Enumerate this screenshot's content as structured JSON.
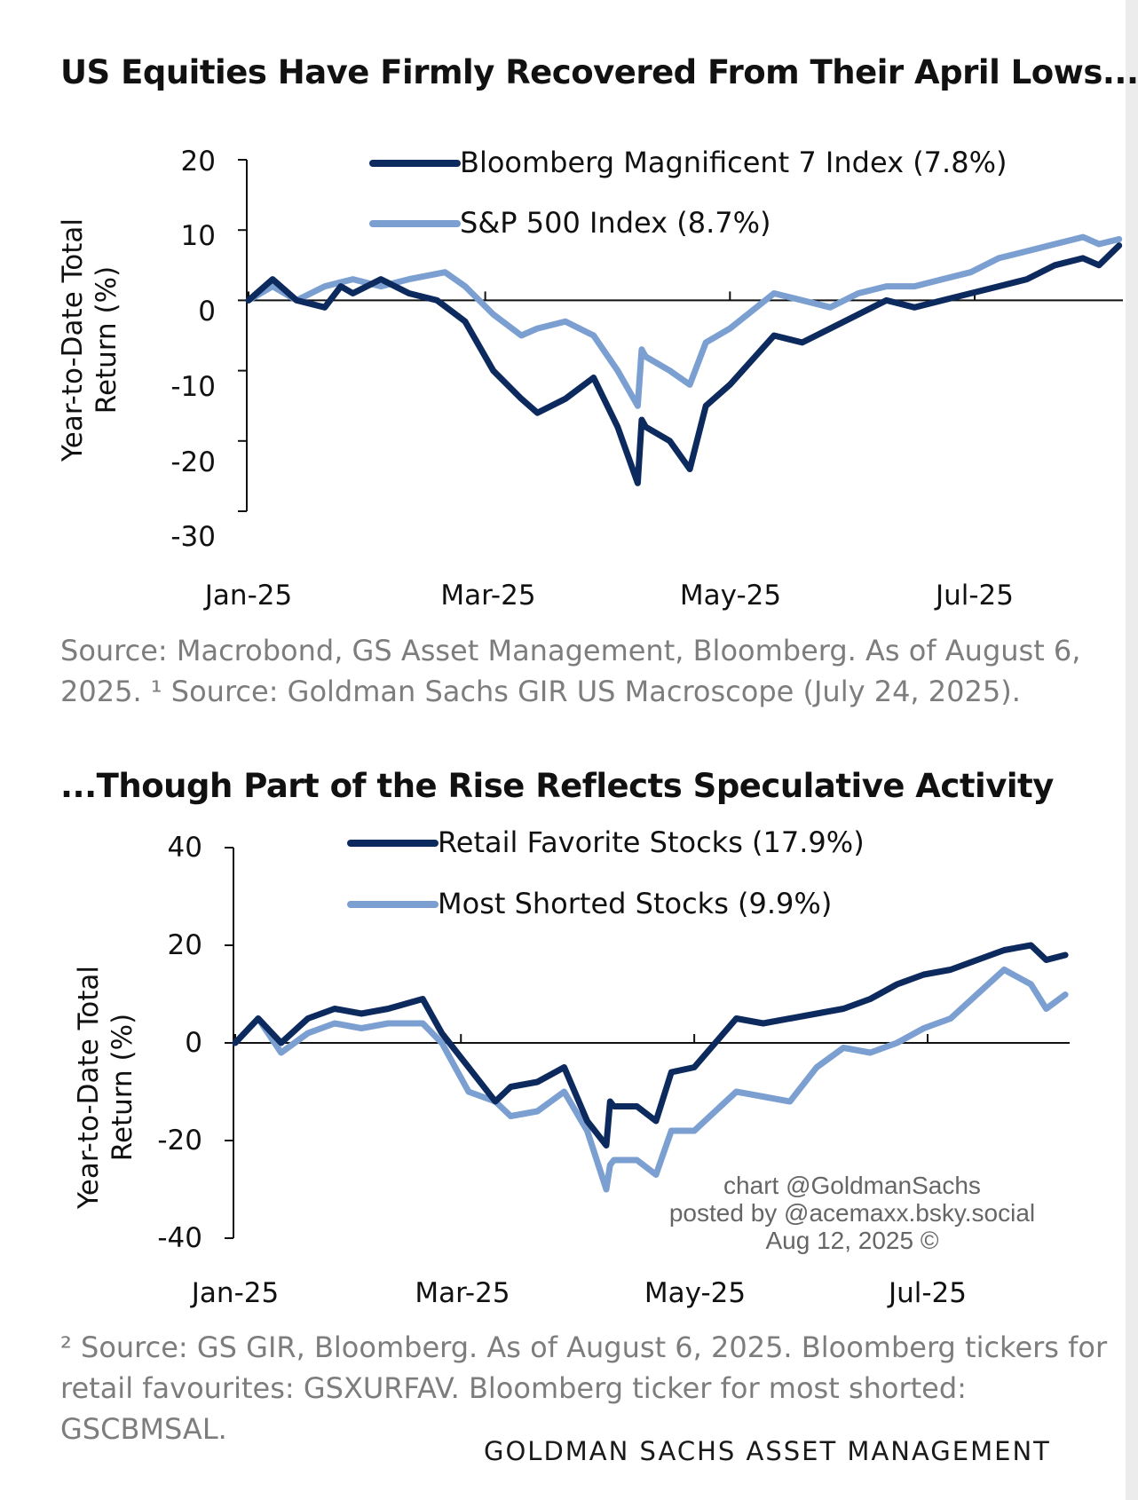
{
  "charts": [
    {
      "title": "US Equities Have Firmly Recovered From Their April Lows...",
      "source": "Source: Macrobond, GS Asset Management, Bloomberg. As of August 6, 2025. ¹ Source: Goldman Sachs GIR US Macroscope (July 24, 2025).",
      "ylabel_line1": "Year-to-Date Total",
      "ylabel_line2": "Return (%)",
      "yticks": [
        "20",
        "10",
        "0",
        "-10",
        "-20",
        "-30"
      ],
      "xticks": [
        "Jan-25",
        "Mar-25",
        "May-25",
        "Jul-25"
      ],
      "legend": [
        "Bloomberg Magnificent 7 Index (7.8%)",
        "S&P 500 Index (8.7%)"
      ]
    },
    {
      "title": "...Though Part of the Rise Reflects Speculative Activity",
      "source": "² Source: GS GIR, Bloomberg. As of August 6, 2025. Bloomberg tickers for retail favourites: GSXURFAV. Bloomberg ticker for most shorted: GSCBMSAL.",
      "ylabel_line1": "Year-to-Date Total",
      "ylabel_line2": "Return (%)",
      "yticks": [
        "40",
        "20",
        "0",
        "-20",
        "-40"
      ],
      "xticks": [
        "Jan-25",
        "Mar-25",
        "May-25",
        "Jul-25"
      ],
      "legend": [
        "Retail Favorite Stocks (17.9%)",
        "Most Shorted Stocks (9.9%)"
      ]
    }
  ],
  "watermark": [
    "chart @GoldmanSachs",
    "posted by @acemaxx.bsky.social",
    "Aug 12, 2025 ©"
  ],
  "footer": "GOLDMAN SACHS ASSET MANAGEMENT",
  "colors": {
    "dark": "#0d2a5e",
    "light": "#7b9fd1",
    "axis": "#111111",
    "text": "#111111"
  },
  "chart_data": [
    {
      "type": "line",
      "title": "US Equities Have Firmly Recovered From Their April Lows...",
      "ylabel": "Year-to-Date Total Return (%)",
      "ylim": [
        -30,
        20
      ],
      "x_range": [
        "2025-01-01",
        "2025-08-06"
      ],
      "legend_position": "top-right",
      "series": [
        {
          "name": "Bloomberg Magnificent 7 Index (7.8%)",
          "color": "#0d2a5e",
          "x": [
            "2025-01-01",
            "2025-01-07",
            "2025-01-13",
            "2025-01-20",
            "2025-01-24",
            "2025-01-27",
            "2025-02-03",
            "2025-02-10",
            "2025-02-17",
            "2025-02-24",
            "2025-03-03",
            "2025-03-10",
            "2025-03-14",
            "2025-03-21",
            "2025-03-28",
            "2025-04-03",
            "2025-04-08",
            "2025-04-09",
            "2025-04-10",
            "2025-04-16",
            "2025-04-21",
            "2025-04-25",
            "2025-05-01",
            "2025-05-12",
            "2025-05-19",
            "2025-05-26",
            "2025-06-02",
            "2025-06-09",
            "2025-06-16",
            "2025-06-23",
            "2025-06-30",
            "2025-07-07",
            "2025-07-14",
            "2025-07-21",
            "2025-07-28",
            "2025-08-01",
            "2025-08-06"
          ],
          "y": [
            0,
            3,
            0,
            -1,
            2,
            1,
            3,
            1,
            0,
            -3,
            -10,
            -14,
            -16,
            -14,
            -11,
            -18,
            -26,
            -17,
            -18,
            -20,
            -24,
            -15,
            -12,
            -5,
            -6,
            -4,
            -2,
            0,
            -1,
            0,
            1,
            2,
            3,
            5,
            6,
            5,
            7.8
          ]
        },
        {
          "name": "S&P 500 Index (8.7%)",
          "color": "#7b9fd1",
          "x": [
            "2025-01-01",
            "2025-01-07",
            "2025-01-13",
            "2025-01-20",
            "2025-01-27",
            "2025-02-03",
            "2025-02-10",
            "2025-02-19",
            "2025-02-24",
            "2025-03-03",
            "2025-03-10",
            "2025-03-14",
            "2025-03-21",
            "2025-03-28",
            "2025-04-03",
            "2025-04-08",
            "2025-04-09",
            "2025-04-10",
            "2025-04-16",
            "2025-04-21",
            "2025-04-25",
            "2025-05-01",
            "2025-05-12",
            "2025-05-19",
            "2025-05-26",
            "2025-06-02",
            "2025-06-09",
            "2025-06-16",
            "2025-06-23",
            "2025-06-30",
            "2025-07-07",
            "2025-07-14",
            "2025-07-21",
            "2025-07-28",
            "2025-08-01",
            "2025-08-06"
          ],
          "y": [
            0,
            2,
            0,
            2,
            3,
            2,
            3,
            4,
            2,
            -2,
            -5,
            -4,
            -3,
            -5,
            -10,
            -15,
            -7,
            -8,
            -10,
            -12,
            -6,
            -4,
            1,
            0,
            -1,
            1,
            2,
            2,
            3,
            4,
            6,
            7,
            8,
            9,
            8,
            8.7
          ]
        }
      ]
    },
    {
      "type": "line",
      "title": "...Though Part of the Rise Reflects Speculative Activity",
      "ylabel": "Year-to-Date Total Return (%)",
      "ylim": [
        -40,
        40
      ],
      "x_range": [
        "2025-01-01",
        "2025-08-06"
      ],
      "legend_position": "top-right",
      "series": [
        {
          "name": "Retail Favorite Stocks (17.9%)",
          "color": "#0d2a5e",
          "x": [
            "2025-01-01",
            "2025-01-07",
            "2025-01-13",
            "2025-01-20",
            "2025-01-27",
            "2025-02-03",
            "2025-02-10",
            "2025-02-19",
            "2025-02-24",
            "2025-03-03",
            "2025-03-10",
            "2025-03-14",
            "2025-03-21",
            "2025-03-28",
            "2025-04-03",
            "2025-04-08",
            "2025-04-09",
            "2025-04-10",
            "2025-04-16",
            "2025-04-21",
            "2025-04-25",
            "2025-05-01",
            "2025-05-12",
            "2025-05-19",
            "2025-05-26",
            "2025-06-02",
            "2025-06-09",
            "2025-06-16",
            "2025-06-23",
            "2025-06-30",
            "2025-07-07",
            "2025-07-14",
            "2025-07-21",
            "2025-07-28",
            "2025-08-01",
            "2025-08-06"
          ],
          "y": [
            0,
            5,
            0,
            5,
            7,
            6,
            7,
            9,
            2,
            -5,
            -12,
            -9,
            -8,
            -5,
            -16,
            -21,
            -12,
            -13,
            -13,
            -16,
            -6,
            -5,
            5,
            4,
            5,
            6,
            7,
            9,
            12,
            14,
            15,
            17,
            19,
            20,
            17,
            18
          ]
        },
        {
          "name": "Most Shorted Stocks (9.9%)",
          "color": "#7b9fd1",
          "x": [
            "2025-01-01",
            "2025-01-07",
            "2025-01-13",
            "2025-01-20",
            "2025-01-27",
            "2025-02-03",
            "2025-02-10",
            "2025-02-19",
            "2025-02-24",
            "2025-03-03",
            "2025-03-10",
            "2025-03-14",
            "2025-03-21",
            "2025-03-28",
            "2025-04-03",
            "2025-04-08",
            "2025-04-09",
            "2025-04-10",
            "2025-04-16",
            "2025-04-21",
            "2025-04-25",
            "2025-05-01",
            "2025-05-12",
            "2025-05-19",
            "2025-05-26",
            "2025-06-02",
            "2025-06-09",
            "2025-06-16",
            "2025-06-23",
            "2025-06-30",
            "2025-07-07",
            "2025-07-14",
            "2025-07-21",
            "2025-07-28",
            "2025-08-01",
            "2025-08-06"
          ],
          "y": [
            0,
            5,
            -2,
            2,
            4,
            3,
            4,
            4,
            0,
            -10,
            -12,
            -15,
            -14,
            -10,
            -18,
            -30,
            -25,
            -24,
            -24,
            -27,
            -18,
            -18,
            -10,
            -11,
            -12,
            -5,
            -1,
            -2,
            0,
            3,
            5,
            10,
            15,
            12,
            7,
            9.9
          ]
        }
      ]
    }
  ]
}
